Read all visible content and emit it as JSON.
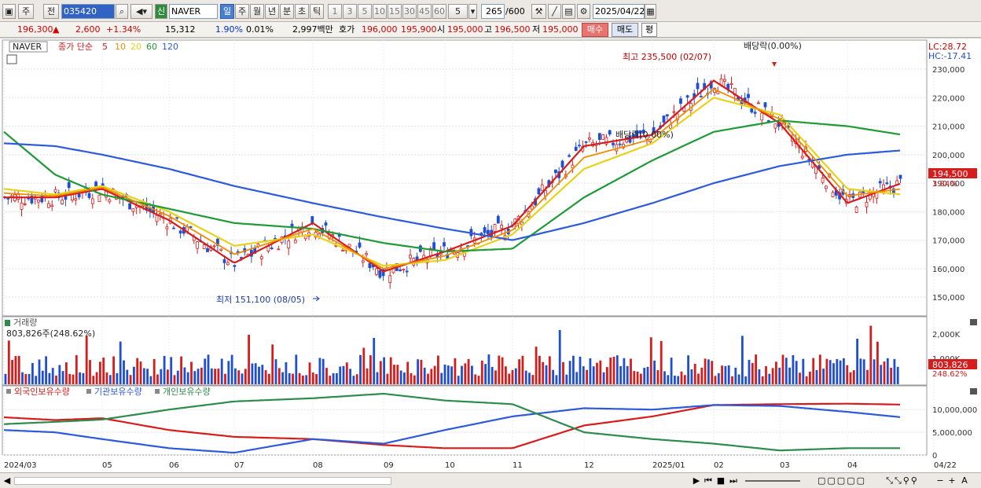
{
  "toolbar": {
    "type_label": "주",
    "prev_label": "전",
    "code": "035420",
    "credit_label": "신",
    "name": "NAVER",
    "periods": [
      "일",
      "주",
      "월",
      "년",
      "분",
      "초",
      "틱"
    ],
    "active_period": "일",
    "intervals": [
      "1",
      "3",
      "5",
      "10",
      "15",
      "30",
      "45",
      "60"
    ],
    "interval_value": "5",
    "count": "265",
    "count_total": "/600",
    "date": "2025/04/22"
  },
  "quote": {
    "price": "196,300",
    "price_arrow": "▲",
    "change": "2,600",
    "change_pct": "+1.34%",
    "volume": "15,312",
    "turnover_pct": "1.90%",
    "ratio": "0.01%",
    "amount": "2,997백만",
    "ask_label": "호가",
    "ask1": "196,000",
    "ask2": "195,900",
    "open_label": "시",
    "open": "195,000",
    "high_label": "고",
    "high": "196,500",
    "low_label": "저",
    "low": "195,000",
    "buy_label": "매수",
    "sell_label": "매도",
    "eval_label": "평"
  },
  "price_panel": {
    "legend_name": "NAVER",
    "legend_type": "종가 단순",
    "ma_labels": [
      "5",
      "10",
      "20",
      "60",
      "120"
    ],
    "ma_colors": [
      "#d71c1c",
      "#f08c00",
      "#e6d21a",
      "#1e9a37",
      "#2c5ad9"
    ],
    "lc_label": "LC:28.72",
    "hc_label": "HC:-17.41",
    "y_ticks": [
      "230,000",
      "220,000",
      "210,000",
      "200,000",
      "190,000",
      "180,000",
      "170,000",
      "160,000",
      "150,000"
    ],
    "y_tick_values": [
      230000,
      220000,
      210000,
      200000,
      190000,
      180000,
      170000,
      160000,
      150000
    ],
    "high_annotation": "최고 235,500 (02/07)",
    "low_annotation": "최저 151,100 (08/05)",
    "dividend_top": "배당락(0.00%)",
    "dividend_mid": "배당락(0.00%)",
    "current_price_tag": "194,500",
    "current_pct_tag": "3.84%"
  },
  "volume_panel": {
    "title": "거래량",
    "sub": "803,826주(248.62%)",
    "y_ticks": [
      "2,000K",
      "1,000K"
    ],
    "tag_value": "803,826",
    "tag_pct": "248.62%"
  },
  "holdings_panel": {
    "legend": [
      "외국인보유수량",
      "기관보유수량",
      "개인보유수량"
    ],
    "colors": [
      "#d71c1c",
      "#2c5ad9",
      "#2e8b4e"
    ],
    "y_ticks": [
      "10,000,000",
      "5,000,000",
      "0"
    ]
  },
  "x_axis": [
    "2024/03",
    "05",
    "06",
    "07",
    "08",
    "09",
    "10",
    "11",
    "12",
    "2025/01",
    "02",
    "03",
    "04",
    "04/22"
  ],
  "chart_data": {
    "type": "line",
    "title": "NAVER",
    "ylabel": "",
    "ylim": [
      147000,
      238000
    ],
    "x": [
      "2024/03",
      "04",
      "05",
      "06",
      "07",
      "08",
      "09",
      "10",
      "11",
      "12",
      "2025/01",
      "02",
      "03",
      "04",
      "04/22"
    ],
    "series": [
      {
        "name": "5",
        "values": [
          185000,
          185000,
          188000,
          177000,
          162000,
          176000,
          159000,
          166000,
          175000,
          203000,
          207000,
          226000,
          211000,
          183000,
          190000
        ]
      },
      {
        "name": "20",
        "values": [
          188000,
          186000,
          189000,
          180000,
          168000,
          172000,
          161000,
          163000,
          172000,
          195000,
          204000,
          220000,
          214000,
          188000,
          186000
        ]
      },
      {
        "name": "60",
        "values": [
          208000,
          193000,
          186000,
          181000,
          176000,
          174000,
          169000,
          166000,
          167000,
          185000,
          198000,
          208000,
          212000,
          210000,
          207000
        ]
      },
      {
        "name": "120",
        "values": [
          204000,
          203000,
          200000,
          195000,
          189000,
          183000,
          178000,
          174000,
          170000,
          176000,
          183000,
          190000,
          196000,
          200000,
          201500
        ]
      }
    ],
    "holdings": {
      "series": [
        {
          "name": "외국인보유수량",
          "values": [
            8300000,
            7700000,
            8100000,
            5500000,
            4000000,
            3500000,
            2200000,
            1500000,
            1500000,
            6500000,
            8500000,
            11000000,
            11200000,
            11300000,
            11100000
          ]
        },
        {
          "name": "기관보유수량",
          "values": [
            5500000,
            5000000,
            3500000,
            1500000,
            500000,
            3500000,
            2500000,
            5500000,
            8500000,
            10300000,
            10000000,
            11000000,
            10800000,
            9500000,
            8300000
          ]
        },
        {
          "name": "개인보유수량",
          "values": [
            6800000,
            7300000,
            7800000,
            10000000,
            11800000,
            12500000,
            13500000,
            12000000,
            11200000,
            5000000,
            3500000,
            2500000,
            1000000,
            1500000,
            1500000
          ]
        }
      ]
    }
  },
  "bottombar": {
    "zoom_minus": "−",
    "zoom_plus": "+",
    "font_label": "A"
  }
}
